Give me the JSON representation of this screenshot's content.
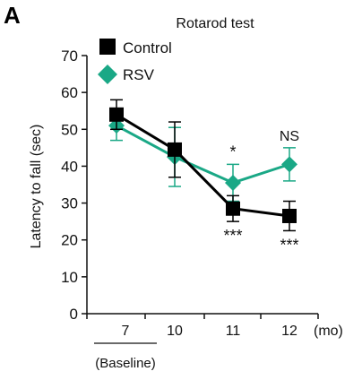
{
  "panel_label": "A",
  "chart_data": {
    "type": "line",
    "title": "Rotarod test",
    "ylabel": "Latency to fall (sec)",
    "xunit": "(mo)",
    "categories": [
      "7",
      "10",
      "11",
      "12"
    ],
    "baseline_label": "(Baseline)",
    "ylim": [
      0,
      70
    ],
    "yticks": [
      0,
      10,
      20,
      30,
      40,
      50,
      60,
      70
    ],
    "grid": false,
    "legend_position": "top-left",
    "series": [
      {
        "name": "Control",
        "color": "#000000",
        "marker": "square",
        "values": [
          54,
          44.5,
          28.5,
          26.5
        ],
        "err": [
          4,
          7.5,
          3.5,
          4
        ]
      },
      {
        "name": "RSV",
        "color": "#1aa886",
        "marker": "diamond",
        "values": [
          51,
          42.5,
          35.5,
          40.5
        ],
        "err": [
          4,
          8,
          5,
          4.5
        ]
      }
    ],
    "annotations": [
      {
        "category": "11",
        "text": "*",
        "placement": "above",
        "series": "RSV"
      },
      {
        "category": "12",
        "text": "NS",
        "placement": "above",
        "series": "RSV"
      },
      {
        "category": "11",
        "text": "***",
        "placement": "below",
        "series": "Control"
      },
      {
        "category": "12",
        "text": "***",
        "placement": "below",
        "series": "Control"
      }
    ]
  }
}
